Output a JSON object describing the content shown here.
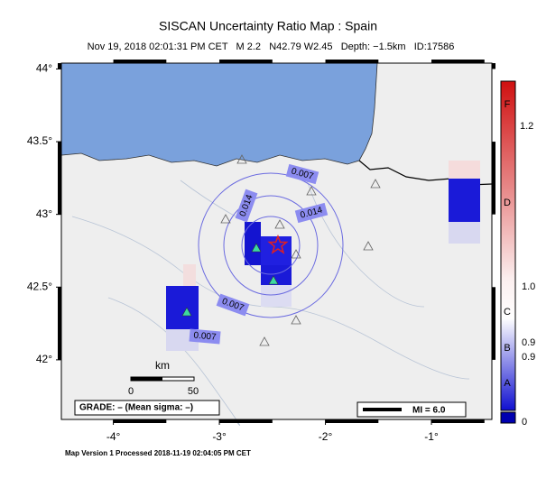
{
  "title": "SISCAN Uncertainty Ratio Map : Spain",
  "subtitle": "Nov 19, 2018 02:01:31 PM CET   M 2.2   N42.79 W2.45   Depth: −1.5km   ID:17586",
  "map": {
    "xlim": [
      -4.49,
      -0.43
    ],
    "ylim": [
      41.59,
      44.04
    ],
    "xticks": [
      {
        "value": -4,
        "label": "-4°"
      },
      {
        "value": -3,
        "label": "-3°"
      },
      {
        "value": -2,
        "label": "-2°"
      },
      {
        "value": -1,
        "label": "-1°"
      }
    ],
    "yticks": [
      {
        "value": 44,
        "label": "44°"
      },
      {
        "value": 43.5,
        "label": "43.5°"
      },
      {
        "value": 43,
        "label": "43°"
      },
      {
        "value": 42.5,
        "label": "42.5°"
      },
      {
        "value": 42,
        "label": "42°"
      }
    ]
  },
  "contour_labels": [
    "0.007",
    "0.014",
    "0.014",
    "0.007",
    "0.007"
  ],
  "scale_bar": {
    "unit": "km",
    "labels": [
      "0",
      "50"
    ]
  },
  "grade": "GRADE: – (Mean sigma: –)",
  "intensity": "MI = 6.0",
  "colorbar": {
    "labels": [
      "F",
      "1.2",
      "D",
      "1.0",
      "C",
      "0.9",
      "B",
      "0.9",
      "A",
      "0"
    ]
  },
  "footer": "Map Version 1 Processed 2018-11-19 02:04:05 PM CET"
}
